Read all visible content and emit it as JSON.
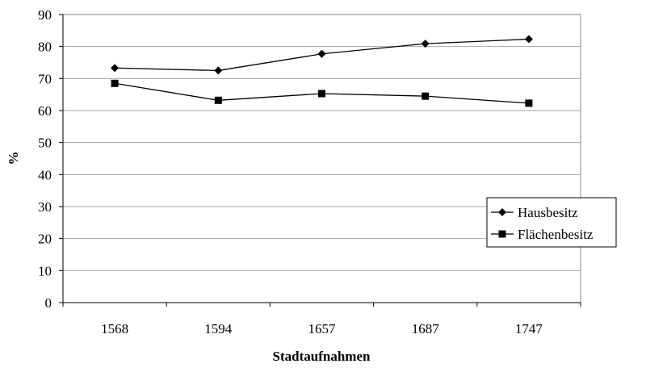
{
  "chart_data": {
    "type": "line",
    "title": "",
    "xlabel": "Stadtaufnahmen",
    "ylabel": "%",
    "categories": [
      "1568",
      "1594",
      "1657",
      "1687",
      "1747"
    ],
    "ylim": [
      0,
      90
    ],
    "yticks": [
      "0",
      "10",
      "20",
      "30",
      "40",
      "50",
      "60",
      "70",
      "80",
      "90"
    ],
    "grid": "horizontal",
    "legend_position": "right",
    "series": [
      {
        "name": "Hausbesitz",
        "marker": "diamond",
        "values": [
          73.3,
          72.5,
          77.7,
          80.9,
          82.3
        ]
      },
      {
        "name": "Flächenbesitz",
        "marker": "square",
        "values": [
          68.5,
          63.2,
          65.3,
          64.5,
          62.3
        ]
      }
    ]
  }
}
